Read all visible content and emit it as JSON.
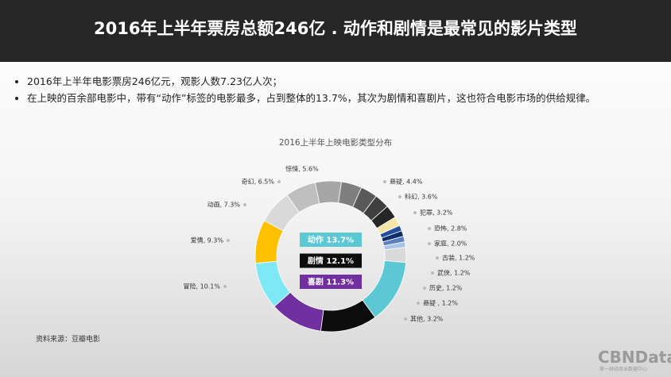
{
  "header": {
    "title": "2016年上半年票房总额246亿 . 动作和剧情是最常见的影片类型"
  },
  "bullets": [
    "2016年上半年电影票房246亿元，观影人数7.23亿人次；",
    "在上映的百余部电影中，带有“动作”标签的电影最多，占到整体的13.7%，其次为剧情和喜剧片，这也符合电影市场的供给规律。"
  ],
  "chart_data": {
    "type": "donut",
    "title": "2016上半年上映电影类型分布",
    "values": [
      5.6,
      4.4,
      3.6,
      3.2,
      2.8,
      2.0,
      1.2,
      1.2,
      1.2,
      1.2,
      3.2,
      13.7,
      12.1,
      11.3,
      10.1,
      9.3,
      7.3,
      6.5
    ],
    "value_labels": [
      "惊悚, 5.6%",
      "悬疑, 4.4%",
      "科幻, 3.6%",
      "犯罪, 3.2%",
      "恐怖, 2.8%",
      "家庭, 2.0%",
      "古装, 1.2%",
      "武侠, 1.2%",
      "历史, 1.2%",
      "悬疑 , 1.2%",
      "其他, 3.2%",
      "动作 13.7%",
      "剧情 12.1%",
      "喜剧 11.3%",
      "冒险, 10.1%",
      "爱情, 9.3%",
      "动画, 7.3%",
      "奇幻, 6.5%"
    ],
    "colors": [
      "#a6a6a6",
      "#7f7f7f",
      "#595959",
      "#3f3f3f",
      "#262626",
      "#f5e6a8",
      "#1f4e9c",
      "#0d2d6b",
      "#5b7fbf",
      "#a9c4e8",
      "#d9d9d9",
      "#5bc8d4",
      "#0d0d0d",
      "#7030a0",
      "#7ee8f5",
      "#ffc000",
      "#d9d9d9",
      "#bfbfbf"
    ]
  },
  "footer": {
    "source": "资料来源：豆瓣电影",
    "logo": "CBNData",
    "logo_subtitle": "第一财经商业数据中心"
  }
}
